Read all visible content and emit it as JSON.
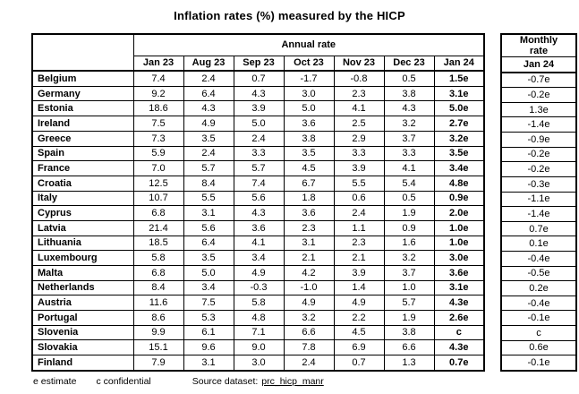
{
  "title": "Inflation rates (%) measured by the HICP",
  "chart_data": {
    "type": "table",
    "title": "Inflation rates (%) measured by the HICP",
    "column_groups": [
      {
        "label": "Annual rate",
        "span": 7
      },
      {
        "label": "Monthly rate",
        "span": 1
      }
    ],
    "annual_columns": [
      "Jan 23",
      "Aug 23",
      "Sep 23",
      "Oct 23",
      "Nov 23",
      "Dec 23",
      "Jan 24"
    ],
    "monthly_column": "Jan 24",
    "rows": [
      {
        "country": "Belgium",
        "annual": [
          "7.4",
          "2.4",
          "0.7",
          "-1.7",
          "-0.8",
          "0.5",
          "1.5e"
        ],
        "monthly": "-0.7e"
      },
      {
        "country": "Germany",
        "annual": [
          "9.2",
          "6.4",
          "4.3",
          "3.0",
          "2.3",
          "3.8",
          "3.1e"
        ],
        "monthly": "-0.2e"
      },
      {
        "country": "Estonia",
        "annual": [
          "18.6",
          "4.3",
          "3.9",
          "5.0",
          "4.1",
          "4.3",
          "5.0e"
        ],
        "monthly": "1.3e"
      },
      {
        "country": "Ireland",
        "annual": [
          "7.5",
          "4.9",
          "5.0",
          "3.6",
          "2.5",
          "3.2",
          "2.7e"
        ],
        "monthly": "-1.4e"
      },
      {
        "country": "Greece",
        "annual": [
          "7.3",
          "3.5",
          "2.4",
          "3.8",
          "2.9",
          "3.7",
          "3.2e"
        ],
        "monthly": "-0.9e"
      },
      {
        "country": "Spain",
        "annual": [
          "5.9",
          "2.4",
          "3.3",
          "3.5",
          "3.3",
          "3.3",
          "3.5e"
        ],
        "monthly": "-0.2e"
      },
      {
        "country": "France",
        "annual": [
          "7.0",
          "5.7",
          "5.7",
          "4.5",
          "3.9",
          "4.1",
          "3.4e"
        ],
        "monthly": "-0.2e"
      },
      {
        "country": "Croatia",
        "annual": [
          "12.5",
          "8.4",
          "7.4",
          "6.7",
          "5.5",
          "5.4",
          "4.8e"
        ],
        "monthly": "-0.3e"
      },
      {
        "country": "Italy",
        "annual": [
          "10.7",
          "5.5",
          "5.6",
          "1.8",
          "0.6",
          "0.5",
          "0.9e"
        ],
        "monthly": "-1.1e"
      },
      {
        "country": "Cyprus",
        "annual": [
          "6.8",
          "3.1",
          "4.3",
          "3.6",
          "2.4",
          "1.9",
          "2.0e"
        ],
        "monthly": "-1.4e"
      },
      {
        "country": "Latvia",
        "annual": [
          "21.4",
          "5.6",
          "3.6",
          "2.3",
          "1.1",
          "0.9",
          "1.0e"
        ],
        "monthly": "0.7e"
      },
      {
        "country": "Lithuania",
        "annual": [
          "18.5",
          "6.4",
          "4.1",
          "3.1",
          "2.3",
          "1.6",
          "1.0e"
        ],
        "monthly": "0.1e"
      },
      {
        "country": "Luxembourg",
        "annual": [
          "5.8",
          "3.5",
          "3.4",
          "2.1",
          "2.1",
          "3.2",
          "3.0e"
        ],
        "monthly": "-0.4e"
      },
      {
        "country": "Malta",
        "annual": [
          "6.8",
          "5.0",
          "4.9",
          "4.2",
          "3.9",
          "3.7",
          "3.6e"
        ],
        "monthly": "-0.5e"
      },
      {
        "country": "Netherlands",
        "annual": [
          "8.4",
          "3.4",
          "-0.3",
          "-1.0",
          "1.4",
          "1.0",
          "3.1e"
        ],
        "monthly": "0.2e"
      },
      {
        "country": "Austria",
        "annual": [
          "11.6",
          "7.5",
          "5.8",
          "4.9",
          "4.9",
          "5.7",
          "4.3e"
        ],
        "monthly": "-0.4e"
      },
      {
        "country": "Portugal",
        "annual": [
          "8.6",
          "5.3",
          "4.8",
          "3.2",
          "2.2",
          "1.9",
          "2.6e"
        ],
        "monthly": "-0.1e"
      },
      {
        "country": "Slovenia",
        "annual": [
          "9.9",
          "6.1",
          "7.1",
          "6.6",
          "4.5",
          "3.8",
          "c"
        ],
        "monthly": "c"
      },
      {
        "country": "Slovakia",
        "annual": [
          "15.1",
          "9.6",
          "9.0",
          "7.8",
          "6.9",
          "6.6",
          "4.3e"
        ],
        "monthly": "0.6e"
      },
      {
        "country": "Finland",
        "annual": [
          "7.9",
          "3.1",
          "3.0",
          "2.4",
          "0.7",
          "1.3",
          "0.7e"
        ],
        "monthly": "-0.1e"
      }
    ],
    "notes": {
      "estimate": "e estimate",
      "confidential": "c confidential",
      "source_label": "Source dataset:",
      "source_link": "prc_hicp_manr"
    }
  },
  "colors": {
    "background": "#ffffff",
    "text": "#000000",
    "border": "#000000"
  }
}
